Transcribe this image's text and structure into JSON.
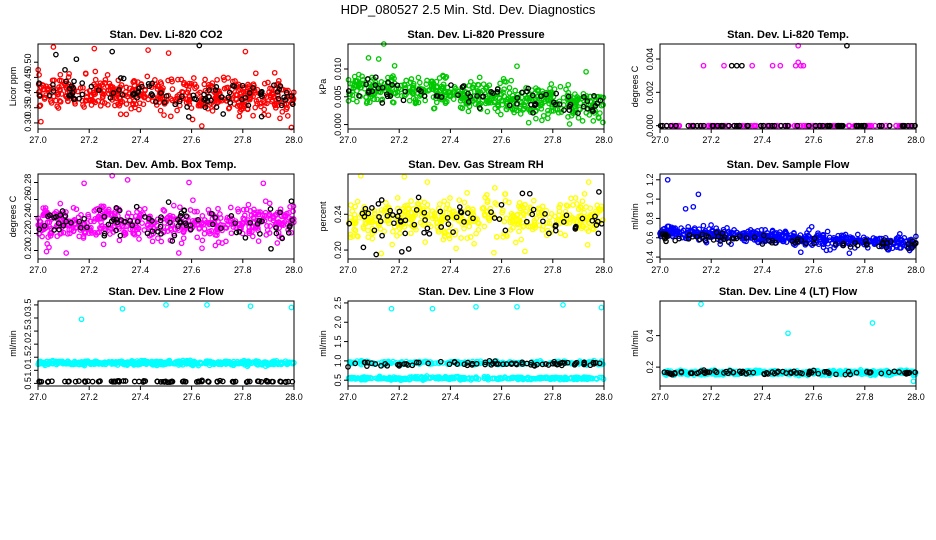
{
  "title": "HDP_080527  2.5 Min. Std. Dev. Diagnostics",
  "colors": {
    "black": "#000000"
  },
  "chart_data": [
    {
      "type": "scatter",
      "title": "Stan. Dev. Li-820 CO2",
      "ylabel": "Licor ppm",
      "xlim": [
        27.0,
        28.0
      ],
      "ylim": [
        0.28,
        0.56
      ],
      "xticks": [
        "27.0",
        "27.2",
        "27.4",
        "27.6",
        "27.8",
        "28.0"
      ],
      "xtickvals": [
        27.0,
        27.2,
        27.4,
        27.6,
        27.8,
        28.0
      ],
      "yticks": [
        "0.30",
        "0.35",
        "0.40",
        "0.45",
        "0.50"
      ],
      "ytickvals": [
        0.3,
        0.35,
        0.4,
        0.45,
        0.5
      ],
      "series": [
        {
          "name": "colored",
          "color": "#ff0000",
          "gen": {
            "n": 480,
            "base": 0.4,
            "spread": 0.055,
            "trend": -0.015
          },
          "outliers": [
            [
              27.06,
              0.55
            ],
            [
              27.22,
              0.545
            ],
            [
              27.43,
              0.54
            ],
            [
              27.51,
              0.53
            ],
            [
              27.81,
              0.535
            ],
            [
              27.99,
              0.285
            ],
            [
              27.64,
              0.29
            ]
          ]
        },
        {
          "name": "black",
          "color": "#000000",
          "gen": {
            "n": 95,
            "base": 0.4,
            "spread": 0.05,
            "trend": -0.015
          },
          "outliers": [
            [
              27.07,
              0.525
            ],
            [
              27.15,
              0.51
            ],
            [
              27.63,
              0.555
            ],
            [
              27.29,
              0.535
            ]
          ]
        }
      ]
    },
    {
      "type": "scatter",
      "title": "Stan. Dev. Li-820 Pressure",
      "ylabel": "kPa",
      "xlim": [
        27.0,
        28.0
      ],
      "ylim": [
        -0.0008,
        0.0145
      ],
      "xticks": [
        "27.0",
        "27.2",
        "27.4",
        "27.6",
        "27.8",
        "28.0"
      ],
      "xtickvals": [
        27.0,
        27.2,
        27.4,
        27.6,
        27.8,
        28.0
      ],
      "yticks": [
        "0.000",
        "0.005",
        "0.010"
      ],
      "ytickvals": [
        0.0,
        0.005,
        0.01
      ],
      "series": [
        {
          "name": "colored",
          "color": "#00c800",
          "gen": {
            "n": 520,
            "base": 0.0068,
            "spread": 0.0028,
            "trend": -0.0035
          },
          "outliers": [
            [
              27.14,
              0.0145
            ],
            [
              27.08,
              0.012
            ],
            [
              27.66,
              0.0105
            ],
            [
              27.93,
              0.0095
            ],
            [
              27.12,
              0.0118
            ]
          ]
        },
        {
          "name": "black",
          "color": "#000000",
          "gen": {
            "n": 75,
            "base": 0.0065,
            "spread": 0.0022,
            "trend": -0.003
          },
          "outliers": []
        }
      ]
    },
    {
      "type": "scatter",
      "title": "Stan. Dev. Li-820 Temp.",
      "ylabel": "degrees C",
      "xlim": [
        27.0,
        28.0
      ],
      "ylim": [
        -0.0002,
        0.0049
      ],
      "xticks": [
        "27.0",
        "27.2",
        "27.4",
        "27.6",
        "27.8",
        "28.0"
      ],
      "xtickvals": [
        27.0,
        27.2,
        27.4,
        27.6,
        27.8,
        28.0
      ],
      "yticks": [
        "0.000",
        "0.002",
        "0.004"
      ],
      "ytickvals": [
        0.0,
        0.002,
        0.004
      ],
      "series": [
        {
          "name": "colored",
          "color": "#ff00ff",
          "gen": {
            "n": 110,
            "base": 0.0,
            "spread": 0.0,
            "trend": 0.0
          },
          "outliers": [
            [
              27.17,
              0.0036
            ],
            [
              27.25,
              0.0036
            ],
            [
              27.36,
              0.0036
            ],
            [
              27.44,
              0.0036
            ],
            [
              27.47,
              0.0036
            ],
            [
              27.53,
              0.0036
            ],
            [
              27.54,
              0.0038
            ],
            [
              27.55,
              0.0036
            ],
            [
              27.54,
              0.0048
            ],
            [
              27.56,
              0.0036
            ]
          ]
        },
        {
          "name": "black",
          "color": "#000000",
          "gen": {
            "n": 70,
            "base": 0.0,
            "spread": 0.0,
            "trend": 0.0
          },
          "outliers": [
            [
              27.28,
              0.0036
            ],
            [
              27.3,
              0.0036
            ],
            [
              27.32,
              0.0036
            ],
            [
              27.73,
              0.0048
            ]
          ]
        }
      ]
    },
    {
      "type": "scatter",
      "title": "Stan. Dev. Amb. Box Temp.",
      "ylabel": "degrees C",
      "xlim": [
        27.0,
        28.0
      ],
      "ylim": [
        0.19,
        0.29
      ],
      "xticks": [
        "27.0",
        "27.2",
        "27.4",
        "27.6",
        "27.8",
        "28.0"
      ],
      "xtickvals": [
        27.0,
        27.2,
        27.4,
        27.6,
        27.8,
        28.0
      ],
      "yticks": [
        "0.20",
        "0.22",
        "0.24",
        "0.26",
        "0.28"
      ],
      "ytickvals": [
        0.2,
        0.22,
        0.24,
        0.26,
        0.28
      ],
      "series": [
        {
          "name": "colored",
          "color": "#ff00ff",
          "gen": {
            "n": 480,
            "base": 0.232,
            "spread": 0.02,
            "trend": 0.0
          },
          "outliers": [
            [
              27.29,
              0.288
            ],
            [
              27.35,
              0.283
            ],
            [
              27.18,
              0.279
            ],
            [
              27.59,
              0.28
            ],
            [
              27.88,
              0.279
            ],
            [
              27.11,
              0.197
            ],
            [
              27.55,
              0.197
            ]
          ]
        },
        {
          "name": "black",
          "color": "#000000",
          "gen": {
            "n": 90,
            "base": 0.232,
            "spread": 0.02,
            "trend": 0.0
          },
          "outliers": [
            [
              27.99,
              0.258
            ],
            [
              27.91,
              0.202
            ],
            [
              27.81,
              0.215
            ]
          ]
        }
      ]
    },
    {
      "type": "scatter",
      "title": "Stan. Dev. Gas Stream RH",
      "ylabel": "percent",
      "xlim": [
        27.0,
        28.0
      ],
      "ylim": [
        0.19,
        0.285
      ],
      "xticks": [
        "27.0",
        "27.2",
        "27.4",
        "27.6",
        "27.8",
        "28.0"
      ],
      "xtickvals": [
        27.0,
        27.2,
        27.4,
        27.6,
        27.8,
        28.0
      ],
      "yticks": [
        "0.20",
        "0.24"
      ],
      "ytickvals": [
        0.2,
        0.24
      ],
      "series": [
        {
          "name": "colored",
          "color": "#ffff00",
          "gen": {
            "n": 430,
            "base": 0.235,
            "spread": 0.022,
            "trend": 0.0
          },
          "outliers": [
            [
              27.05,
              0.283
            ],
            [
              27.22,
              0.282
            ],
            [
              27.31,
              0.276
            ],
            [
              27.13,
              0.196
            ],
            [
              27.57,
              0.197
            ],
            [
              27.94,
              0.276
            ]
          ]
        },
        {
          "name": "black",
          "color": "#000000",
          "gen": {
            "n": 70,
            "base": 0.235,
            "spread": 0.02,
            "trend": 0.0
          },
          "outliers": [
            [
              27.06,
              0.203
            ],
            [
              27.11,
              0.195
            ],
            [
              27.21,
              0.198
            ],
            [
              27.71,
              0.263
            ],
            [
              27.98,
              0.265
            ]
          ]
        }
      ]
    },
    {
      "type": "scatter",
      "title": "Stan. Dev. Sample Flow",
      "ylabel": "ml/min",
      "xlim": [
        27.0,
        28.0
      ],
      "ylim": [
        0.38,
        1.26
      ],
      "xticks": [
        "27.0",
        "27.2",
        "27.4",
        "27.6",
        "27.8",
        "28.0"
      ],
      "xtickvals": [
        27.0,
        27.2,
        27.4,
        27.6,
        27.8,
        28.0
      ],
      "yticks": [
        "0.4",
        "0.6",
        "0.8",
        "1.0",
        "1.2"
      ],
      "ytickvals": [
        0.4,
        0.6,
        0.8,
        1.0,
        1.2
      ],
      "series": [
        {
          "name": "colored",
          "color": "#0000ff",
          "gen": {
            "n": 470,
            "base": 0.66,
            "spread": 0.07,
            "trend": -0.12
          },
          "outliers": [
            [
              27.03,
              1.2
            ],
            [
              27.15,
              1.05
            ],
            [
              27.13,
              0.92
            ],
            [
              27.1,
              0.9
            ],
            [
              27.55,
              0.45
            ],
            [
              27.65,
              0.47
            ],
            [
              27.74,
              0.44
            ]
          ]
        },
        {
          "name": "black",
          "color": "#000000",
          "gen": {
            "n": 70,
            "base": 0.62,
            "spread": 0.05,
            "trend": -0.1
          },
          "outliers": []
        }
      ]
    },
    {
      "type": "scatter",
      "title": "Stan. Dev. Line 2 Flow",
      "ylabel": "ml/min",
      "xlim": [
        27.0,
        28.0
      ],
      "ylim": [
        0.4,
        3.65
      ],
      "xticks": [
        "27.0",
        "27.2",
        "27.4",
        "27.6",
        "27.8",
        "28.0"
      ],
      "xtickvals": [
        27.0,
        27.2,
        27.4,
        27.6,
        27.8,
        28.0
      ],
      "yticks": [
        "0.5",
        "1.0",
        "1.5",
        "2.0",
        "2.5",
        "3.0",
        "3.5"
      ],
      "ytickvals": [
        0.5,
        1.0,
        1.5,
        2.0,
        2.5,
        3.0,
        3.5
      ],
      "series": [
        {
          "name": "colored",
          "color": "#00ffff",
          "gen": {
            "n": 480,
            "base": 1.28,
            "spread": 0.08,
            "trend": 0.0
          },
          "outliers": [
            [
              27.17,
              2.95
            ],
            [
              27.33,
              3.35
            ],
            [
              27.5,
              3.5
            ],
            [
              27.66,
              3.5
            ],
            [
              27.83,
              3.45
            ],
            [
              27.99,
              3.4
            ]
          ]
        },
        {
          "name": "black",
          "color": "#000000",
          "gen": {
            "n": 85,
            "base": 0.57,
            "spread": 0.025,
            "trend": 0.0
          },
          "outliers": []
        }
      ]
    },
    {
      "type": "scatter",
      "title": "Stan. Dev. Line 3 Flow",
      "ylabel": "ml/min",
      "xlim": [
        27.0,
        28.0
      ],
      "ylim": [
        0.35,
        2.55
      ],
      "xticks": [
        "27.0",
        "27.2",
        "27.4",
        "27.6",
        "27.8",
        "28.0"
      ],
      "xtickvals": [
        27.0,
        27.2,
        27.4,
        27.6,
        27.8,
        28.0
      ],
      "yticks": [
        "0.5",
        "1.0",
        "1.5",
        "2.0",
        "2.5"
      ],
      "ytickvals": [
        0.5,
        1.0,
        1.5,
        2.0,
        2.5
      ],
      "series": [
        {
          "name": "colored",
          "color": "#00ffff",
          "gen": {
            "n": 500,
            "base": 0.55,
            "spread": 0.035,
            "trend": 0.0,
            "band2": 0.95,
            "band2spread": 0.05
          },
          "outliers": [
            [
              27.17,
              2.35
            ],
            [
              27.33,
              2.35
            ],
            [
              27.5,
              2.4
            ],
            [
              27.66,
              2.4
            ],
            [
              27.84,
              2.45
            ],
            [
              27.99,
              2.38
            ]
          ]
        },
        {
          "name": "black",
          "color": "#000000",
          "gen": {
            "n": 80,
            "base": 0.92,
            "spread": 0.06,
            "trend": 0.0
          },
          "outliers": []
        }
      ]
    },
    {
      "type": "scatter",
      "title": "Stan. Dev. Line 4 (LT) Flow",
      "ylabel": "ml/min",
      "xlim": [
        27.0,
        28.0
      ],
      "ylim": [
        0.08,
        0.62
      ],
      "xticks": [
        "27.0",
        "27.2",
        "27.4",
        "27.6",
        "27.8",
        "28.0"
      ],
      "xtickvals": [
        27.0,
        27.2,
        27.4,
        27.6,
        27.8,
        28.0
      ],
      "yticks": [
        "0.2",
        "0.4"
      ],
      "ytickvals": [
        0.2,
        0.4
      ],
      "series": [
        {
          "name": "colored",
          "color": "#00ffff",
          "gen": {
            "n": 480,
            "base": 0.165,
            "spread": 0.014,
            "trend": 0.0
          },
          "outliers": [
            [
              27.16,
              0.6
            ],
            [
              27.5,
              0.415
            ],
            [
              27.83,
              0.48
            ],
            [
              27.99,
              0.11
            ]
          ]
        },
        {
          "name": "black",
          "color": "#000000",
          "gen": {
            "n": 85,
            "base": 0.165,
            "spread": 0.012,
            "trend": 0.0
          },
          "outliers": []
        }
      ]
    }
  ]
}
